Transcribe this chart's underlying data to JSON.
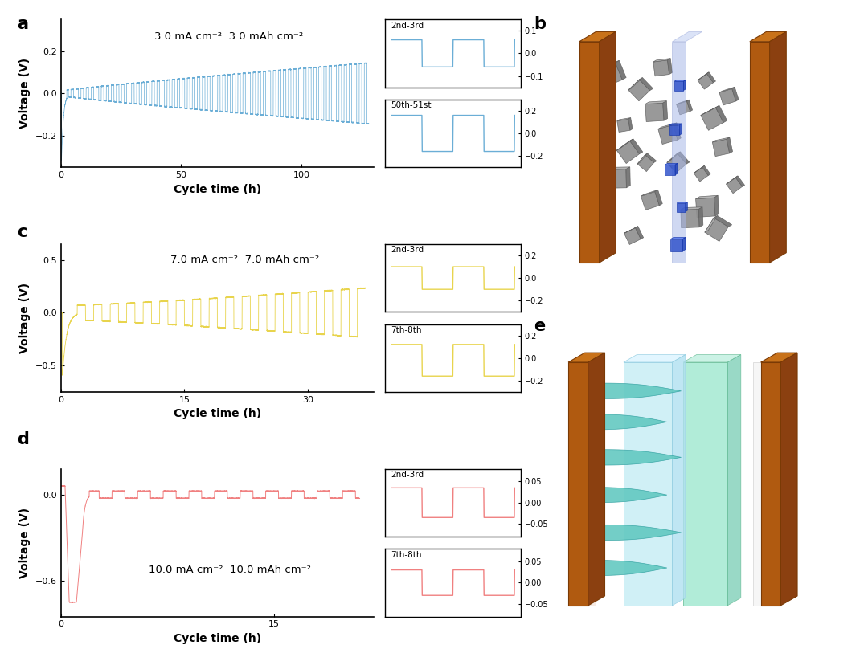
{
  "panel_a": {
    "color": "#6baed6",
    "annotation": "3.0 mA cm⁻²  3.0 mAh cm⁻²",
    "xlim": [
      0,
      130
    ],
    "ylim": [
      -0.35,
      0.35
    ],
    "xticks": [
      0,
      50,
      100
    ],
    "yticks": [
      -0.2,
      0.0,
      0.2
    ],
    "ylabel": "Voltage (V)",
    "xlabel": "Cycle time (h)"
  },
  "panel_a_inset1": {
    "label": "2nd-3rd",
    "ylim": [
      -0.15,
      0.15
    ],
    "yticks": [
      -0.1,
      0.0,
      0.1
    ]
  },
  "panel_a_inset2": {
    "label": "50th-51st",
    "ylim": [
      -0.3,
      0.3
    ],
    "yticks": [
      -0.2,
      0.0,
      0.2
    ]
  },
  "panel_c": {
    "color": "#e8d44d",
    "annotation": "7.0 mA cm⁻²  7.0 mAh cm⁻²",
    "xlim": [
      0,
      38
    ],
    "ylim": [
      -0.75,
      0.65
    ],
    "xticks": [
      0,
      15,
      30
    ],
    "yticks": [
      -0.5,
      0.0,
      0.5
    ],
    "ylabel": "Voltage (V)",
    "xlabel": "Cycle time (h)"
  },
  "panel_c_inset1": {
    "label": "2nd-3rd",
    "ylim": [
      -0.3,
      0.3
    ],
    "yticks": [
      -0.2,
      0.0,
      0.2
    ]
  },
  "panel_c_inset2": {
    "label": "7th-8th",
    "ylim": [
      -0.3,
      0.3
    ],
    "yticks": [
      -0.2,
      0.0,
      0.2
    ]
  },
  "panel_d": {
    "color": "#f08080",
    "annotation": "10.0 mA cm⁻²  10.0 mAh cm⁻²",
    "xlim": [
      0,
      22
    ],
    "ylim": [
      -0.85,
      0.18
    ],
    "xticks": [
      0,
      15
    ],
    "yticks": [
      -0.6,
      0.0
    ],
    "ylabel": "Voltage (V)",
    "xlabel": "Cycle time (h)"
  },
  "panel_d_inset1": {
    "label": "2nd-3rd",
    "ylim": [
      -0.08,
      0.08
    ],
    "yticks": [
      -0.05,
      0.0,
      0.05
    ]
  },
  "panel_d_inset2": {
    "label": "7th-8th",
    "ylim": [
      -0.08,
      0.08
    ],
    "yticks": [
      -0.05,
      0.0,
      0.05
    ]
  },
  "bg_color": "#ffffff",
  "label_fontsize": 15,
  "tick_fontsize": 8,
  "annotation_fontsize": 9.5,
  "axis_label_fontsize": 10
}
